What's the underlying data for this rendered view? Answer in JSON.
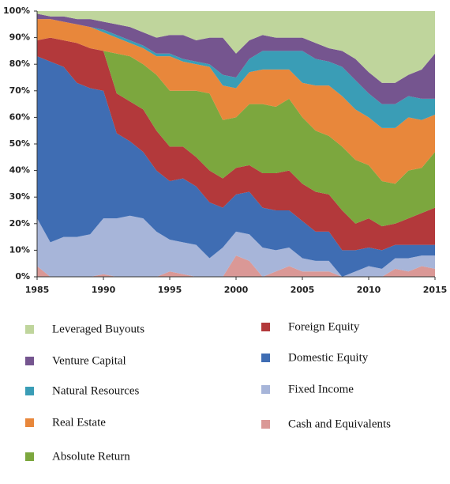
{
  "chart_data": {
    "type": "stacked-area",
    "x": [
      1985,
      1986,
      1987,
      1988,
      1989,
      1990,
      1991,
      1992,
      1993,
      1994,
      1995,
      1996,
      1997,
      1998,
      1999,
      2000,
      2001,
      2002,
      2003,
      2004,
      2005,
      2006,
      2007,
      2008,
      2009,
      2010,
      2011,
      2012,
      2013,
      2014,
      2015
    ],
    "xlim": [
      1985,
      2015
    ],
    "xticks": [
      1985,
      1990,
      1995,
      2000,
      2005,
      2010,
      2015
    ],
    "ylim": [
      0,
      100
    ],
    "yticks": [
      {
        "value": 0,
        "label": "0%"
      },
      {
        "value": 10,
        "label": "10%"
      },
      {
        "value": 20,
        "label": "20%"
      },
      {
        "value": 30,
        "label": "30%"
      },
      {
        "value": 40,
        "label": "40%"
      },
      {
        "value": 50,
        "label": "50%"
      },
      {
        "value": 60,
        "label": "60%"
      },
      {
        "value": 70,
        "label": "70%"
      },
      {
        "value": 80,
        "label": "80%"
      },
      {
        "value": 90,
        "label": "90%"
      },
      {
        "value": 100,
        "label": "100%"
      }
    ],
    "series": [
      {
        "name": "Leveraged Buyouts",
        "color": "#bfd59c",
        "values": [
          1,
          2,
          2,
          3,
          3,
          4,
          5,
          6,
          8,
          10,
          9,
          9,
          11,
          10,
          10,
          16,
          11,
          9,
          10,
          10,
          10,
          12,
          14,
          15,
          18,
          23,
          27,
          27,
          24,
          22,
          16
        ]
      },
      {
        "name": "Venture Capital",
        "color": "#75558f",
        "values": [
          2,
          1,
          2,
          2,
          3,
          3,
          4,
          5,
          5,
          6,
          7,
          9,
          8,
          10,
          14,
          9,
          7,
          6,
          5,
          5,
          5,
          6,
          5,
          6,
          8,
          8,
          8,
          8,
          8,
          11,
          17
        ]
      },
      {
        "name": "Natural Resources",
        "color": "#3a9db6",
        "values": [
          0,
          0,
          0,
          0,
          0,
          1,
          1,
          1,
          1,
          1,
          1,
          1,
          1,
          1,
          4,
          4,
          5,
          7,
          7,
          7,
          12,
          10,
          9,
          11,
          11,
          9,
          9,
          9,
          8,
          8,
          6
        ]
      },
      {
        "name": "Real Estate",
        "color": "#e8873b",
        "values": [
          8,
          7,
          7,
          7,
          8,
          7,
          6,
          5,
          6,
          7,
          13,
          11,
          10,
          10,
          13,
          11,
          12,
          13,
          14,
          11,
          13,
          17,
          19,
          19,
          19,
          18,
          20,
          21,
          20,
          18,
          14
        ]
      },
      {
        "name": "Absolute Return",
        "color": "#7ca73e",
        "values": [
          0,
          0,
          0,
          0,
          0,
          0,
          15,
          17,
          17,
          21,
          21,
          21,
          25,
          29,
          22,
          19,
          23,
          26,
          25,
          27,
          25,
          23,
          22,
          24,
          24,
          20,
          17,
          15,
          18,
          17,
          21
        ]
      },
      {
        "name": "Foreign Equity",
        "color": "#b3393b",
        "values": [
          6,
          9,
          10,
          15,
          15,
          15,
          15,
          15,
          16,
          15,
          13,
          12,
          11,
          12,
          11,
          10,
          10,
          13,
          14,
          15,
          14,
          15,
          14,
          15,
          10,
          11,
          9,
          8,
          10,
          12,
          14
        ]
      },
      {
        "name": "Domestic Equity",
        "color": "#3f6db3",
        "values": [
          61,
          68,
          64,
          58,
          55,
          48,
          32,
          28,
          25,
          23,
          22,
          24,
          22,
          21,
          15,
          14,
          16,
          15,
          15,
          14,
          14,
          11,
          11,
          10,
          8,
          7,
          7,
          5,
          5,
          4,
          4
        ]
      },
      {
        "name": "Fixed Income",
        "color": "#a7b5d9",
        "values": [
          18,
          13,
          15,
          15,
          16,
          21,
          22,
          23,
          22,
          17,
          12,
          12,
          12,
          7,
          11,
          9,
          10,
          11,
          8,
          7,
          5,
          4,
          4,
          0,
          2,
          4,
          3,
          4,
          5,
          4,
          5
        ]
      },
      {
        "name": "Cash and Equivalents",
        "color": "#da9896",
        "values": [
          4,
          0,
          0,
          0,
          0,
          1,
          0,
          0,
          0,
          0,
          2,
          1,
          0,
          0,
          0,
          8,
          6,
          0,
          2,
          4,
          2,
          2,
          2,
          0,
          0,
          0,
          0,
          3,
          2,
          4,
          3
        ]
      }
    ]
  }
}
